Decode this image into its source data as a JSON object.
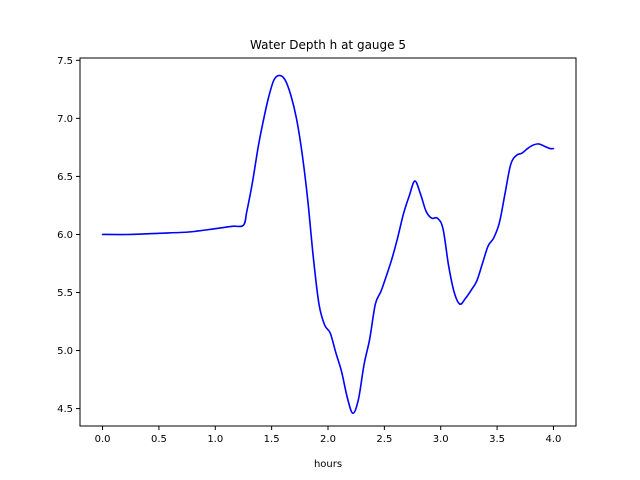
{
  "chart_data": {
    "type": "line",
    "title": "Water Depth h at gauge 5",
    "xlabel": "hours",
    "ylabel": "",
    "xlim": [
      -0.2,
      4.2
    ],
    "ylim": [
      4.35,
      7.52
    ],
    "grid": false,
    "colors": {
      "line": "#0000ff",
      "axes": "#000000",
      "background": "#ffffff"
    },
    "x_ticks": [
      0.0,
      0.5,
      1.0,
      1.5,
      2.0,
      2.5,
      3.0,
      3.5,
      4.0
    ],
    "x_tick_labels": [
      "0.0",
      "0.5",
      "1.0",
      "1.5",
      "2.0",
      "2.5",
      "3.0",
      "3.5",
      "4.0"
    ],
    "y_ticks": [
      4.5,
      5.0,
      5.5,
      6.0,
      6.5,
      7.0,
      7.5
    ],
    "y_tick_labels": [
      "4.5",
      "5.0",
      "5.5",
      "6.0",
      "6.5",
      "7.0",
      "7.5"
    ],
    "series": [
      {
        "x": [
          0.0,
          0.25,
          0.5,
          0.75,
          0.85,
          1.0,
          1.15,
          1.25,
          1.28,
          1.33,
          1.38,
          1.42,
          1.47,
          1.52,
          1.57,
          1.62,
          1.67,
          1.72,
          1.77,
          1.82,
          1.87,
          1.92,
          1.97,
          2.02,
          2.07,
          2.12,
          2.17,
          2.22,
          2.27,
          2.32,
          2.37,
          2.42,
          2.47,
          2.52,
          2.57,
          2.62,
          2.67,
          2.72,
          2.77,
          2.82,
          2.87,
          2.92,
          2.97,
          3.02,
          3.07,
          3.12,
          3.17,
          3.22,
          3.27,
          3.32,
          3.37,
          3.42,
          3.47,
          3.52,
          3.57,
          3.62,
          3.67,
          3.72,
          3.77,
          3.82,
          3.87,
          3.92,
          3.97,
          4.0
        ],
        "y": [
          6.0,
          6.0,
          6.01,
          6.02,
          6.03,
          6.05,
          6.07,
          6.08,
          6.2,
          6.45,
          6.75,
          6.95,
          7.17,
          7.33,
          7.37,
          7.33,
          7.2,
          7.0,
          6.7,
          6.3,
          5.8,
          5.4,
          5.22,
          5.15,
          4.98,
          4.82,
          4.6,
          4.46,
          4.58,
          4.88,
          5.1,
          5.4,
          5.51,
          5.65,
          5.8,
          5.98,
          6.18,
          6.33,
          6.46,
          6.35,
          6.2,
          6.14,
          6.14,
          6.05,
          5.73,
          5.5,
          5.4,
          5.45,
          5.52,
          5.6,
          5.75,
          5.9,
          5.97,
          6.1,
          6.35,
          6.6,
          6.68,
          6.7,
          6.74,
          6.77,
          6.78,
          6.76,
          6.74,
          6.74
        ]
      }
    ]
  }
}
